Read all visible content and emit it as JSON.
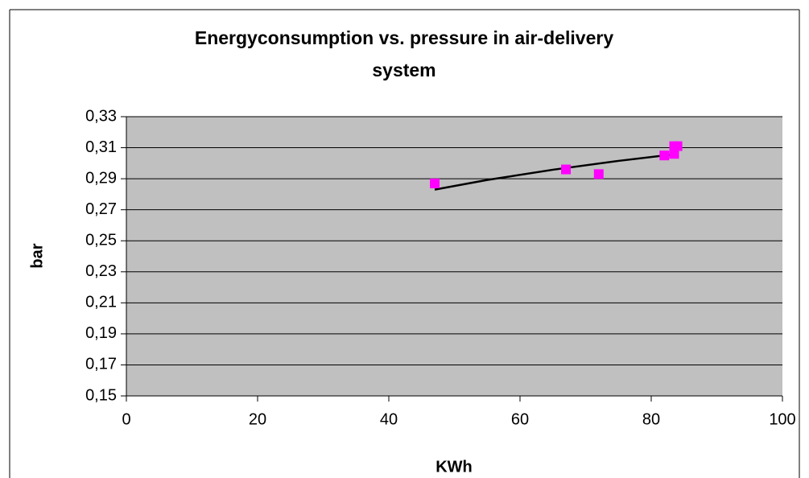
{
  "chart_data": {
    "type": "scatter",
    "title": "Energyconsumption vs. pressure in air-delivery system",
    "x_label": "KWh",
    "y_label": "bar",
    "x": [
      47,
      67,
      72,
      82,
      83.5,
      83.5,
      84
    ],
    "values": [
      0.287,
      0.296,
      0.293,
      0.305,
      0.306,
      0.311,
      0.311
    ],
    "color": "#ff00ff",
    "trendline": {
      "x": [
        47,
        55,
        65,
        75,
        84
      ],
      "values": [
        0.283,
        0.2892,
        0.2958,
        0.3015,
        0.306
      ],
      "color": "#000000"
    },
    "xlim": [
      0,
      100
    ],
    "xticks": [
      0,
      20,
      40,
      60,
      80,
      100
    ],
    "ylim": [
      0.15,
      0.33
    ],
    "yticks": [
      {
        "value": 0.15,
        "label": "0,15"
      },
      {
        "value": 0.17,
        "label": "0,17"
      },
      {
        "value": 0.19,
        "label": "0,19"
      },
      {
        "value": 0.21,
        "label": "0,21"
      },
      {
        "value": 0.23,
        "label": "0,23"
      },
      {
        "value": 0.25,
        "label": "0,25"
      },
      {
        "value": 0.27,
        "label": "0,27"
      },
      {
        "value": 0.29,
        "label": "0,29"
      },
      {
        "value": 0.31,
        "label": "0,31"
      },
      {
        "value": 0.33,
        "label": "0,33"
      }
    ],
    "grid": true,
    "plot_background": "#c0c0c0"
  }
}
